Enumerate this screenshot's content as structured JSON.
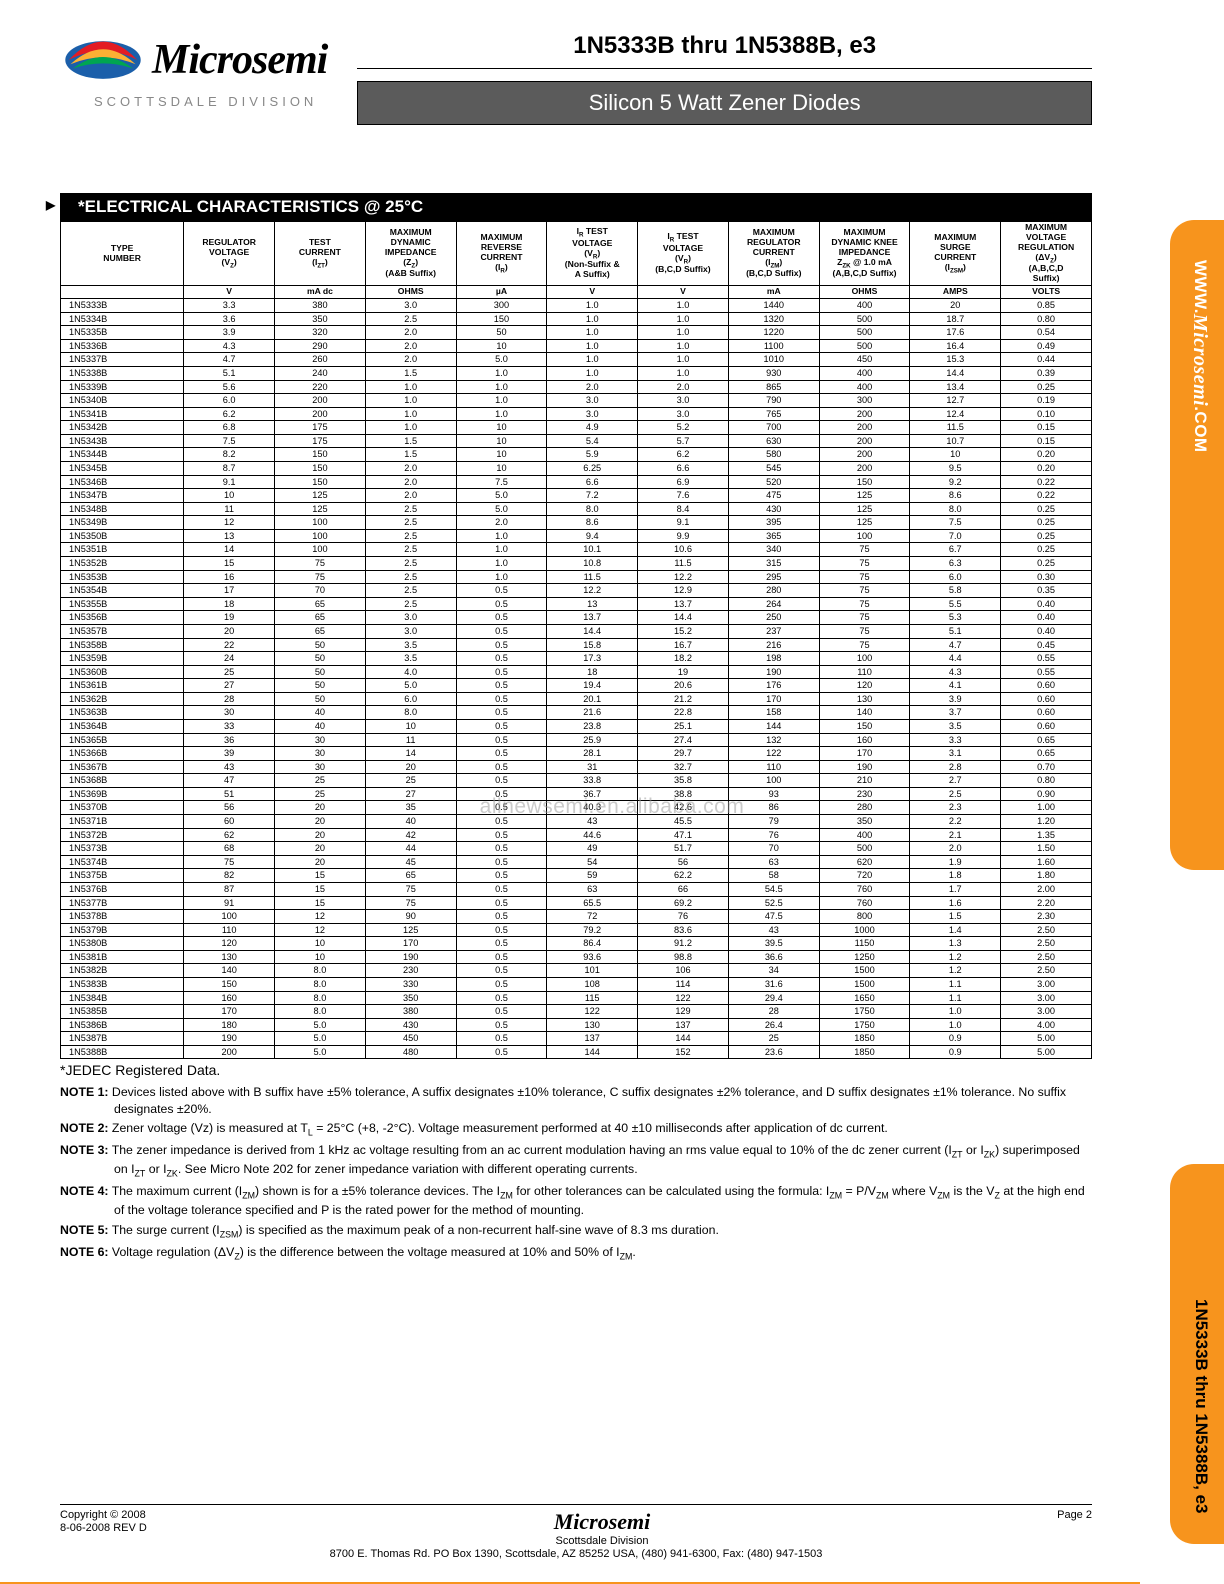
{
  "header": {
    "brand": "Microsemi",
    "division": "SCOTTSDALE DIVISION",
    "part_title": "1N5333B thru 1N5388B, e3",
    "product_desc": "Silicon 5 Watt Zener Diodes"
  },
  "section": {
    "title": "*ELECTRICAL CHARACTERISTICS @ 25°C"
  },
  "columns": [
    {
      "h": "TYPE NUMBER",
      "unit": ""
    },
    {
      "h": "REGULATOR VOLTAGE (V_Z)",
      "unit": "V"
    },
    {
      "h": "TEST CURRENT (I_ZT)",
      "unit": "mA dc"
    },
    {
      "h": "MAXIMUM DYNAMIC IMPEDANCE (Z_Z) (A&B Suffix)",
      "unit": "OHMS"
    },
    {
      "h": "MAXIMUM REVERSE CURRENT (I_R)",
      "unit": "µA"
    },
    {
      "h": "I_R TEST VOLTAGE (V_R) (Non-Suffix & A Suffix)",
      "unit": "V"
    },
    {
      "h": "I_R TEST VOLTAGE (V_R) (B,C,D Suffix)",
      "unit": "V"
    },
    {
      "h": "MAXIMUM REGULATOR CURRENT (I_ZM) (B,C,D Suffix)",
      "unit": "mA"
    },
    {
      "h": "MAXIMUM DYNAMIC KNEE IMPEDANCE Z_ZK @ 1.0 mA (A,B,C,D Suffix)",
      "unit": "OHMS"
    },
    {
      "h": "MAXIMUM SURGE CURRENT (I_ZSM)",
      "unit": "AMPS"
    },
    {
      "h": "MAXIMUM VOLTAGE REGULATION (ΔV_Z) (A,B,C,D Suffix)",
      "unit": "VOLTS"
    }
  ],
  "groups": [
    [
      [
        "1N5333B",
        "3.3",
        "380",
        "3.0",
        "300",
        "1.0",
        "1.0",
        "1440",
        "400",
        "20",
        "0.85"
      ],
      [
        "1N5334B",
        "3.6",
        "350",
        "2.5",
        "150",
        "1.0",
        "1.0",
        "1320",
        "500",
        "18.7",
        "0.80"
      ],
      [
        "1N5335B",
        "3.9",
        "320",
        "2.0",
        "50",
        "1.0",
        "1.0",
        "1220",
        "500",
        "17.6",
        "0.54"
      ],
      [
        "1N5336B",
        "4.3",
        "290",
        "2.0",
        "10",
        "1.0",
        "1.0",
        "1100",
        "500",
        "16.4",
        "0.49"
      ],
      [
        "1N5337B",
        "4.7",
        "260",
        "2.0",
        "5.0",
        "1.0",
        "1.0",
        "1010",
        "450",
        "15.3",
        "0.44"
      ]
    ],
    [
      [
        "1N5338B",
        "5.1",
        "240",
        "1.5",
        "1.0",
        "1.0",
        "1.0",
        "930",
        "400",
        "14.4",
        "0.39"
      ],
      [
        "1N5339B",
        "5.6",
        "220",
        "1.0",
        "1.0",
        "2.0",
        "2.0",
        "865",
        "400",
        "13.4",
        "0.25"
      ],
      [
        "1N5340B",
        "6.0",
        "200",
        "1.0",
        "1.0",
        "3.0",
        "3.0",
        "790",
        "300",
        "12.7",
        "0.19"
      ],
      [
        "1N5341B",
        "6.2",
        "200",
        "1.0",
        "1.0",
        "3.0",
        "3.0",
        "765",
        "200",
        "12.4",
        "0.10"
      ],
      [
        "1N5342B",
        "6.8",
        "175",
        "1.0",
        "10",
        "4.9",
        "5.2",
        "700",
        "200",
        "11.5",
        "0.15"
      ]
    ],
    [
      [
        "1N5343B",
        "7.5",
        "175",
        "1.5",
        "10",
        "5.4",
        "5.7",
        "630",
        "200",
        "10.7",
        "0.15"
      ],
      [
        "1N5344B",
        "8.2",
        "150",
        "1.5",
        "10",
        "5.9",
        "6.2",
        "580",
        "200",
        "10",
        "0.20"
      ],
      [
        "1N5345B",
        "8.7",
        "150",
        "2.0",
        "10",
        "6.25",
        "6.6",
        "545",
        "200",
        "9.5",
        "0.20"
      ],
      [
        "1N5346B",
        "9.1",
        "150",
        "2.0",
        "7.5",
        "6.6",
        "6.9",
        "520",
        "150",
        "9.2",
        "0.22"
      ],
      [
        "1N5347B",
        "10",
        "125",
        "2.0",
        "5.0",
        "7.2",
        "7.6",
        "475",
        "125",
        "8.6",
        "0.22"
      ]
    ],
    [
      [
        "1N5348B",
        "11",
        "125",
        "2.5",
        "5.0",
        "8.0",
        "8.4",
        "430",
        "125",
        "8.0",
        "0.25"
      ],
      [
        "1N5349B",
        "12",
        "100",
        "2.5",
        "2.0",
        "8.6",
        "9.1",
        "395",
        "125",
        "7.5",
        "0.25"
      ],
      [
        "1N5350B",
        "13",
        "100",
        "2.5",
        "1.0",
        "9.4",
        "9.9",
        "365",
        "100",
        "7.0",
        "0.25"
      ],
      [
        "1N5351B",
        "14",
        "100",
        "2.5",
        "1.0",
        "10.1",
        "10.6",
        "340",
        "75",
        "6.7",
        "0.25"
      ],
      [
        "1N5352B",
        "15",
        "75",
        "2.5",
        "1.0",
        "10.8",
        "11.5",
        "315",
        "75",
        "6.3",
        "0.25"
      ]
    ],
    [
      [
        "1N5353B",
        "16",
        "75",
        "2.5",
        "1.0",
        "11.5",
        "12.2",
        "295",
        "75",
        "6.0",
        "0.30"
      ],
      [
        "1N5354B",
        "17",
        "70",
        "2.5",
        "0.5",
        "12.2",
        "12.9",
        "280",
        "75",
        "5.8",
        "0.35"
      ],
      [
        "1N5355B",
        "18",
        "65",
        "2.5",
        "0.5",
        "13",
        "13.7",
        "264",
        "75",
        "5.5",
        "0.40"
      ],
      [
        "1N5356B",
        "19",
        "65",
        "3.0",
        "0.5",
        "13.7",
        "14.4",
        "250",
        "75",
        "5.3",
        "0.40"
      ],
      [
        "1N5357B",
        "20",
        "65",
        "3.0",
        "0.5",
        "14.4",
        "15.2",
        "237",
        "75",
        "5.1",
        "0.40"
      ]
    ],
    [
      [
        "1N5358B",
        "22",
        "50",
        "3.5",
        "0.5",
        "15.8",
        "16.7",
        "216",
        "75",
        "4.7",
        "0.45"
      ],
      [
        "1N5359B",
        "24",
        "50",
        "3.5",
        "0.5",
        "17.3",
        "18.2",
        "198",
        "100",
        "4.4",
        "0.55"
      ],
      [
        "1N5360B",
        "25",
        "50",
        "4.0",
        "0.5",
        "18",
        "19",
        "190",
        "110",
        "4.3",
        "0.55"
      ],
      [
        "1N5361B",
        "27",
        "50",
        "5.0",
        "0.5",
        "19.4",
        "20.6",
        "176",
        "120",
        "4.1",
        "0.60"
      ],
      [
        "1N5362B",
        "28",
        "50",
        "6.0",
        "0.5",
        "20.1",
        "21.2",
        "170",
        "130",
        "3.9",
        "0.60"
      ]
    ],
    [
      [
        "1N5363B",
        "30",
        "40",
        "8.0",
        "0.5",
        "21.6",
        "22.8",
        "158",
        "140",
        "3.7",
        "0.60"
      ],
      [
        "1N5364B",
        "33",
        "40",
        "10",
        "0.5",
        "23.8",
        "25.1",
        "144",
        "150",
        "3.5",
        "0.60"
      ],
      [
        "1N5365B",
        "36",
        "30",
        "11",
        "0.5",
        "25.9",
        "27.4",
        "132",
        "160",
        "3.3",
        "0.65"
      ],
      [
        "1N5366B",
        "39",
        "30",
        "14",
        "0.5",
        "28.1",
        "29.7",
        "122",
        "170",
        "3.1",
        "0.65"
      ],
      [
        "1N5367B",
        "43",
        "30",
        "20",
        "0.5",
        "31",
        "32.7",
        "110",
        "190",
        "2.8",
        "0.70"
      ]
    ],
    [
      [
        "1N5368B",
        "47",
        "25",
        "25",
        "0.5",
        "33.8",
        "35.8",
        "100",
        "210",
        "2.7",
        "0.80"
      ],
      [
        "1N5369B",
        "51",
        "25",
        "27",
        "0.5",
        "36.7",
        "38.8",
        "93",
        "230",
        "2.5",
        "0.90"
      ],
      [
        "1N5370B",
        "56",
        "20",
        "35",
        "0.5",
        "40.3",
        "42.6",
        "86",
        "280",
        "2.3",
        "1.00"
      ],
      [
        "1N5371B",
        "60",
        "20",
        "40",
        "0.5",
        "43",
        "45.5",
        "79",
        "350",
        "2.2",
        "1.20"
      ],
      [
        "1N5372B",
        "62",
        "20",
        "42",
        "0.5",
        "44.6",
        "47.1",
        "76",
        "400",
        "2.1",
        "1.35"
      ]
    ],
    [
      [
        "1N5373B",
        "68",
        "20",
        "44",
        "0.5",
        "49",
        "51.7",
        "70",
        "500",
        "2.0",
        "1.50"
      ],
      [
        "1N5374B",
        "75",
        "20",
        "45",
        "0.5",
        "54",
        "56",
        "63",
        "620",
        "1.9",
        "1.60"
      ],
      [
        "1N5375B",
        "82",
        "15",
        "65",
        "0.5",
        "59",
        "62.2",
        "58",
        "720",
        "1.8",
        "1.80"
      ],
      [
        "1N5376B",
        "87",
        "15",
        "75",
        "0.5",
        "63",
        "66",
        "54.5",
        "760",
        "1.7",
        "2.00"
      ],
      [
        "1N5377B",
        "91",
        "15",
        "75",
        "0.5",
        "65.5",
        "69.2",
        "52.5",
        "760",
        "1.6",
        "2.20"
      ]
    ],
    [
      [
        "1N5378B",
        "100",
        "12",
        "90",
        "0.5",
        "72",
        "76",
        "47.5",
        "800",
        "1.5",
        "2.30"
      ],
      [
        "1N5379B",
        "110",
        "12",
        "125",
        "0.5",
        "79.2",
        "83.6",
        "43",
        "1000",
        "1.4",
        "2.50"
      ],
      [
        "1N5380B",
        "120",
        "10",
        "170",
        "0.5",
        "86.4",
        "91.2",
        "39.5",
        "1150",
        "1.3",
        "2.50"
      ],
      [
        "1N5381B",
        "130",
        "10",
        "190",
        "0.5",
        "93.6",
        "98.8",
        "36.6",
        "1250",
        "1.2",
        "2.50"
      ],
      [
        "1N5382B",
        "140",
        "8.0",
        "230",
        "0.5",
        "101",
        "106",
        "34",
        "1500",
        "1.2",
        "2.50"
      ]
    ],
    [
      [
        "1N5383B",
        "150",
        "8.0",
        "330",
        "0.5",
        "108",
        "114",
        "31.6",
        "1500",
        "1.1",
        "3.00"
      ],
      [
        "1N5384B",
        "160",
        "8.0",
        "350",
        "0.5",
        "115",
        "122",
        "29.4",
        "1650",
        "1.1",
        "3.00"
      ],
      [
        "1N5385B",
        "170",
        "8.0",
        "380",
        "0.5",
        "122",
        "129",
        "28",
        "1750",
        "1.0",
        "3.00"
      ],
      [
        "1N5386B",
        "180",
        "5.0",
        "430",
        "0.5",
        "130",
        "137",
        "26.4",
        "1750",
        "1.0",
        "4.00"
      ],
      [
        "1N5387B",
        "190",
        "5.0",
        "450",
        "0.5",
        "137",
        "144",
        "25",
        "1850",
        "0.9",
        "5.00"
      ],
      [
        "1N5388B",
        "200",
        "5.0",
        "480",
        "0.5",
        "144",
        "152",
        "23.6",
        "1850",
        "0.9",
        "5.00"
      ]
    ]
  ],
  "jedec": "*JEDEC Registered Data.",
  "notes": [
    "Devices listed above with B suffix have ±5% tolerance, A suffix designates ±10% tolerance, C suffix designates ±2% tolerance, and D suffix designates ±1% tolerance.  No suffix designates ±20%.",
    "Zener voltage (Vz) is measured at T_L = 25°C (+8, -2°C).  Voltage measurement performed at 40 ±10 milliseconds after application of dc current.",
    "The zener impedance is derived from 1 kHz ac voltage resulting from an ac current modulation having an rms value equal to 10% of the dc zener current (I_ZT or I_ZK) superimposed on I_ZT or I_ZK.  See Micro Note 202 for zener impedance variation with different operating currents.",
    "The maximum current (I_ZM) shown is for a ±5% tolerance devices.  The I_ZM for other tolerances can be calculated using the formula:  I_ZM = P/V_ZM  where V_ZM is the V_Z at the high end of the voltage tolerance specified and P is the rated power for the method of mounting.",
    "The surge current (I_ZSM) is specified as the maximum peak of a non-recurrent half-sine wave of 8.3 ms duration.",
    "Voltage regulation (ΔV_Z) is the difference between the voltage measured at 10% and 50% of I_ZM."
  ],
  "footer": {
    "copyright": "Copyright © 2008",
    "rev": "8-06-2008  REV D",
    "brand": "Microsemi",
    "division": "Scottsdale Division",
    "addr": "8700 E. Thomas Rd. PO Box 1390, Scottsdale, AZ 85252 USA, (480) 941-6300, Fax: (480) 947-1503",
    "page": "Page 2"
  },
  "sidebar": {
    "url_www": "WWW.",
    "url_brand": "Microsemi",
    "url_com": ".COM",
    "part": "1N5333B thru 1N5388B, e3"
  },
  "watermark": "allnewsemi.en.alibaba.com",
  "colors": {
    "orange": "#f7941d",
    "header_gray": "#5b5b5b",
    "text": "#000000",
    "muted": "#888888"
  }
}
